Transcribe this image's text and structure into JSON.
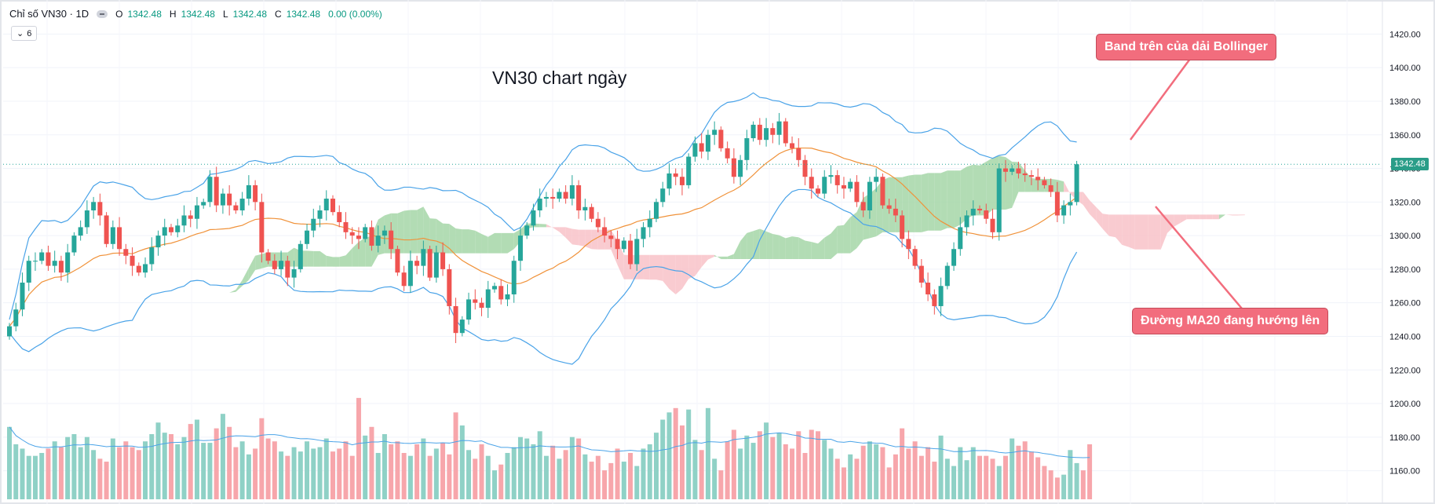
{
  "legend": {
    "symbol": "Chỉ số VN30 · 1D",
    "o_label": "O",
    "o_value": "1342.48",
    "h_label": "H",
    "h_value": "1342.48",
    "l_label": "L",
    "l_value": "1342.48",
    "c_label": "C",
    "c_value": "1342.48",
    "change": "0.00 (0.00%)",
    "indicator_count": "6"
  },
  "last_price_label": "1342.48",
  "annotations": {
    "title": "VN30 chart ngày",
    "upper_band": "Band trên của dải Bollinger",
    "ma20": "Đường MA20 đang hướng lên"
  },
  "colors": {
    "up": "#26a69a",
    "down": "#ef5350",
    "vol_up": "#8fd1c6",
    "vol_down": "#f7a6ab",
    "bollinger": "#4aa3e8",
    "ma20": "#f0923a",
    "cloud_bull": "#a5d6a7",
    "cloud_bear": "#f8c2c8",
    "callout": "#f26d7d"
  },
  "chart_data": {
    "type": "candlestick",
    "title": "VN30 chart ngày",
    "ylim": [
      1150,
      1430
    ],
    "yticks": [
      "1420.00",
      "1400.00",
      "1380.00",
      "1360.00",
      "1340.00",
      "1320.00",
      "1300.00",
      "1280.00",
      "1260.00",
      "1240.00",
      "1220.00",
      "1200.00",
      "1180.00",
      "1160.00"
    ],
    "closes": [
      1246,
      1256,
      1272,
      1285,
      1285,
      1290,
      1282,
      1285,
      1278,
      1290,
      1300,
      1305,
      1315,
      1320,
      1312,
      1295,
      1305,
      1292,
      1288,
      1282,
      1278,
      1283,
      1293,
      1300,
      1305,
      1302,
      1306,
      1312,
      1310,
      1318,
      1320,
      1335,
      1318,
      1325,
      1318,
      1315,
      1322,
      1330,
      1320,
      1290,
      1285,
      1280,
      1285,
      1275,
      1280,
      1295,
      1303,
      1310,
      1315,
      1322,
      1314,
      1308,
      1302,
      1300,
      1298,
      1305,
      1294,
      1300,
      1303,
      1292,
      1278,
      1270,
      1285,
      1282,
      1292,
      1275,
      1290,
      1280,
      1258,
      1242,
      1250,
      1262,
      1260,
      1257,
      1268,
      1270,
      1262,
      1265,
      1285,
      1300,
      1306,
      1315,
      1322,
      1323,
      1322,
      1326,
      1322,
      1330,
      1315,
      1317,
      1310,
      1305,
      1300,
      1298,
      1292,
      1297,
      1283,
      1298,
      1305,
      1310,
      1320,
      1328,
      1337,
      1335,
      1330,
      1347,
      1355,
      1350,
      1360,
      1363,
      1352,
      1346,
      1335,
      1345,
      1358,
      1366,
      1357,
      1364,
      1360,
      1368,
      1355,
      1352,
      1345,
      1335,
      1328,
      1325,
      1335,
      1336,
      1330,
      1328,
      1332,
      1320,
      1315,
      1332,
      1335,
      1318,
      1316,
      1312,
      1298,
      1292,
      1282,
      1272,
      1265,
      1258,
      1270,
      1282,
      1292,
      1305,
      1312,
      1316,
      1315,
      1310,
      1302,
      1340,
      1338,
      1340,
      1337,
      1336,
      1335,
      1333,
      1330,
      1326,
      1312,
      1318,
      1320,
      1342.48
    ],
    "volume_ylim": [
      1150,
      1240
    ],
    "volumes": [
      1200,
      1188,
      1185,
      1180,
      1180,
      1182,
      1185,
      1190,
      1186,
      1193,
      1195,
      1186,
      1193,
      1184,
      1178,
      1176,
      1192,
      1186,
      1190,
      1186,
      1184,
      1190,
      1195,
      1203,
      1196,
      1195,
      1188,
      1193,
      1202,
      1205,
      1189,
      1189,
      1199,
      1209,
      1200,
      1186,
      1190,
      1181,
      1185,
      1206,
      1192,
      1190,
      1183,
      1180,
      1186,
      1183,
      1190,
      1185,
      1186,
      1192,
      1183,
      1185,
      1190,
      1180,
      1220,
      1194,
      1200,
      1182,
      1195,
      1188,
      1190,
      1182,
      1180,
      1188,
      1192,
      1180,
      1185,
      1189,
      1181,
      1210,
      1201,
      1184,
      1178,
      1188,
      1180,
      1170,
      1174,
      1182,
      1186,
      1193,
      1192,
      1188,
      1197,
      1180,
      1187,
      1178,
      1184,
      1193,
      1192,
      1181,
      1176,
      1180,
      1170,
      1175,
      1185,
      1176,
      1182,
      1173,
      1185,
      1188,
      1196,
      1205,
      1210,
      1213,
      1201,
      1212,
      1191,
      1184,
      1213,
      1178,
      1170,
      1190,
      1198,
      1185,
      1194,
      1189,
      1197,
      1203,
      1193,
      1196,
      1188,
      1185,
      1197,
      1182,
      1198,
      1197,
      1191,
      1185,
      1178,
      1172,
      1181,
      1178,
      1187,
      1190,
      1188,
      1186,
      1172,
      1181,
      1199,
      1185,
      1190,
      1180,
      1186,
      1176,
      1194,
      1178,
      1173,
      1186,
      1177,
      1186,
      1180,
      1180,
      1178,
      1173,
      1180,
      1192,
      1187,
      1190,
      1183,
      1179,
      1173,
      1170,
      1165,
      1167,
      1184,
      1175,
      1170,
      1188
    ]
  }
}
